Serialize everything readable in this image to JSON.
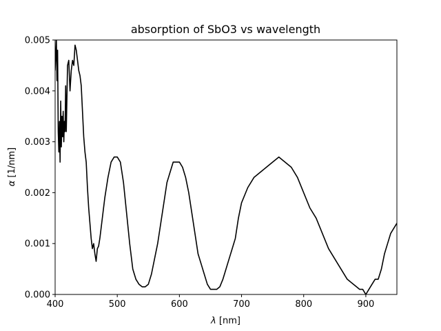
{
  "chart_data": {
    "type": "line",
    "title": "absorption of SbO3 vs wavelength",
    "xlabel_symbol": "λ",
    "xlabel_unit": " [nm]",
    "ylabel_symbol": "α",
    "ylabel_unit": " [1/nm]",
    "xlim": [
      400,
      950
    ],
    "ylim": [
      0,
      0.005
    ],
    "xticks": [
      400,
      500,
      600,
      700,
      800,
      900
    ],
    "xtick_labels": [
      "400",
      "500",
      "600",
      "700",
      "800",
      "900"
    ],
    "yticks": [
      0,
      0.001,
      0.002,
      0.003,
      0.004,
      0.005
    ],
    "ytick_labels": [
      "0.000",
      "0.001",
      "0.002",
      "0.003",
      "0.004",
      "0.005"
    ],
    "grid": false,
    "legend": "none",
    "line_color": "#000000",
    "series": [
      {
        "x": [
          400,
          402,
          403,
          404,
          405,
          406,
          407,
          408,
          409,
          410,
          411,
          412,
          413,
          414,
          415,
          416,
          417,
          418,
          420,
          422,
          424,
          426,
          428,
          430,
          432,
          434,
          436,
          438,
          440,
          442,
          444,
          446,
          448,
          450,
          452,
          454,
          456,
          458,
          460,
          462,
          464,
          466,
          468,
          470,
          472,
          474,
          476,
          478,
          480,
          485,
          490,
          495,
          500,
          505,
          510,
          515,
          520,
          525,
          530,
          535,
          540,
          545,
          550,
          555,
          560,
          565,
          570,
          575,
          580,
          585,
          590,
          595,
          600,
          605,
          610,
          615,
          620,
          625,
          630,
          635,
          640,
          645,
          650,
          655,
          660,
          665,
          670,
          675,
          680,
          685,
          690,
          695,
          700,
          710,
          720,
          730,
          740,
          750,
          760,
          770,
          780,
          790,
          800,
          810,
          820,
          830,
          840,
          850,
          860,
          870,
          880,
          885,
          890,
          895,
          900,
          905,
          910,
          915,
          920,
          925,
          930,
          935,
          940,
          945,
          950
        ],
        "y": [
          0.0044,
          0.005,
          0.0042,
          0.0048,
          0.0032,
          0.0028,
          0.0034,
          0.0026,
          0.0038,
          0.0029,
          0.0035,
          0.0031,
          0.0036,
          0.003,
          0.0034,
          0.0032,
          0.0041,
          0.0032,
          0.0045,
          0.0046,
          0.004,
          0.0044,
          0.0046,
          0.0045,
          0.0049,
          0.0048,
          0.0046,
          0.0044,
          0.0043,
          0.0041,
          0.0036,
          0.0031,
          0.0028,
          0.0026,
          0.0021,
          0.0017,
          0.0014,
          0.0011,
          0.0009,
          0.001,
          0.0008,
          0.00065,
          0.0009,
          0.00095,
          0.0011,
          0.0013,
          0.0015,
          0.0017,
          0.0019,
          0.0023,
          0.0026,
          0.0027,
          0.0027,
          0.0026,
          0.0022,
          0.0016,
          0.001,
          0.0005,
          0.0003,
          0.0002,
          0.00015,
          0.00015,
          0.0002,
          0.0004,
          0.0007,
          0.001,
          0.0014,
          0.0018,
          0.0022,
          0.0024,
          0.0026,
          0.0026,
          0.0026,
          0.0025,
          0.0023,
          0.002,
          0.0016,
          0.0012,
          0.0008,
          0.0006,
          0.0004,
          0.0002,
          0.0001,
          0.0001,
          0.0001,
          0.00015,
          0.0003,
          0.0005,
          0.0007,
          0.0009,
          0.0011,
          0.0015,
          0.0018,
          0.0021,
          0.0023,
          0.0024,
          0.0025,
          0.0026,
          0.0027,
          0.0026,
          0.0025,
          0.0023,
          0.002,
          0.0017,
          0.0015,
          0.0012,
          0.0009,
          0.0007,
          0.0005,
          0.0003,
          0.0002,
          0.00015,
          0.0001,
          0.0001,
          0.0,
          0.0001,
          0.0002,
          0.0003,
          0.0003,
          0.0005,
          0.0008,
          0.001,
          0.0012,
          0.0013,
          0.0014
        ]
      }
    ]
  }
}
